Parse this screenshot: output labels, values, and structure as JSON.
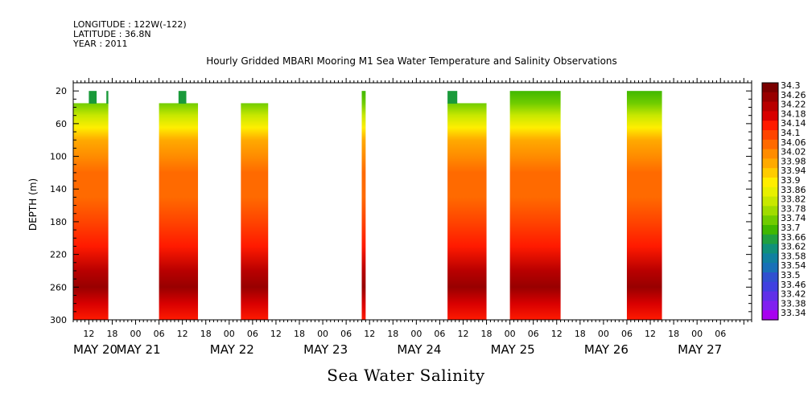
{
  "header": {
    "longitude": "LONGITUDE : 122W(-122)",
    "latitude": "LATITUDE : 36.8N",
    "year": "YEAR : 2011"
  },
  "chart_data": {
    "type": "heatmap",
    "title": "Hourly Gridded MBARI Mooring M1 Sea Water Temperature and Salinity Observations",
    "bottom_title": "Sea Water Salinity",
    "ylabel": "DEPTH (m)",
    "x_unit": "hours since 2011-05-20 00:00",
    "xlim": [
      8,
      182
    ],
    "ylim": [
      300,
      10
    ],
    "y_reversed": true,
    "y_ticks": [
      20,
      60,
      100,
      140,
      180,
      220,
      260,
      300
    ],
    "x_hour_tick_labels": [
      "12",
      "18",
      "00",
      "06",
      "12",
      "18",
      "00",
      "06",
      "12",
      "18",
      "00",
      "06",
      "12",
      "18",
      "00",
      "06",
      "12",
      "18",
      "00",
      "06",
      "12",
      "18",
      "00",
      "06",
      "12",
      "18",
      "00",
      "06"
    ],
    "x_date_labels": [
      "MAY 20",
      "MAY 21",
      "MAY 22",
      "MAY 23",
      "MAY 24",
      "MAY 25",
      "MAY 26",
      "MAY 27"
    ],
    "colorbar": {
      "labels": [
        "34.3",
        "34.26",
        "34.22",
        "34.18",
        "34.14",
        "34.1",
        "34.06",
        "34.02",
        "33.98",
        "33.94",
        "33.9",
        "33.86",
        "33.82",
        "33.78",
        "33.74",
        "33.7",
        "33.66",
        "33.62",
        "33.58",
        "33.54",
        "33.5",
        "33.46",
        "33.42",
        "33.38",
        "33.34"
      ],
      "colors": [
        "#7a0000",
        "#980000",
        "#b80000",
        "#d80000",
        "#ff1a00",
        "#ff4400",
        "#ff6a00",
        "#ff8c00",
        "#ffaa00",
        "#ffcc00",
        "#ffee00",
        "#e8f000",
        "#c8e800",
        "#a0dc00",
        "#70cc00",
        "#40b800",
        "#20a040",
        "#10907a",
        "#1080a0",
        "#1870b8",
        "#3050d0",
        "#4040e0",
        "#6030e8",
        "#8020f0",
        "#a800f0"
      ]
    },
    "blocks": [
      {
        "start": 0,
        "end": 9,
        "top_depth": 35,
        "notches": [
          [
            4,
            6,
            20
          ],
          [
            8.5,
            9,
            20
          ]
        ]
      },
      {
        "start": 22,
        "end": 32,
        "top_depth": 35,
        "notches": [
          [
            27,
            29,
            20
          ]
        ]
      },
      {
        "start": 43,
        "end": 50,
        "top_depth": 35,
        "notches": []
      },
      {
        "start": 74,
        "end": 75,
        "top_depth": 20,
        "notches": []
      },
      {
        "start": 96,
        "end": 106,
        "top_depth": 35,
        "notches": [
          [
            96,
            98.5,
            20
          ]
        ]
      },
      {
        "start": 112,
        "end": 125,
        "top_depth": 20,
        "notches": []
      },
      {
        "start": 142,
        "end": 151,
        "top_depth": 20,
        "notches": []
      }
    ],
    "salinity_profile": [
      {
        "depth": 20,
        "value": 33.72
      },
      {
        "depth": 35,
        "value": 33.76
      },
      {
        "depth": 50,
        "value": 33.82
      },
      {
        "depth": 65,
        "value": 33.9
      },
      {
        "depth": 80,
        "value": 33.96
      },
      {
        "depth": 100,
        "value": 34.02
      },
      {
        "depth": 120,
        "value": 34.06
      },
      {
        "depth": 150,
        "value": 34.08
      },
      {
        "depth": 180,
        "value": 34.09
      },
      {
        "depth": 210,
        "value": 34.13
      },
      {
        "depth": 240,
        "value": 34.2
      },
      {
        "depth": 260,
        "value": 34.24
      },
      {
        "depth": 280,
        "value": 34.18
      },
      {
        "depth": 300,
        "value": 34.14
      }
    ]
  }
}
